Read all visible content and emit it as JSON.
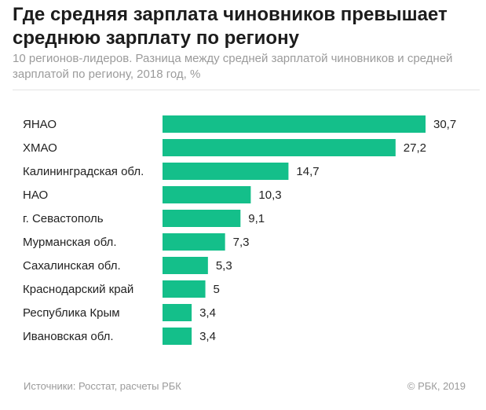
{
  "header": {
    "title": "Где средняя зарплата чиновников превышает среднюю зарплату по региону",
    "subtitle": "10 регионов-лидеров. Разница между средней зарплатой чиновников и средней зарплатой по региону, 2018 год, %"
  },
  "footer": {
    "source": "Источники: Росстат, расчеты РБК",
    "copyright": "© РБК, 2019"
  },
  "chart_data": {
    "type": "bar",
    "orientation": "horizontal",
    "bar_color": "#14bf8a",
    "grid": false,
    "categories": [
      "ЯНАО",
      "ХМАО",
      "Калининградская обл.",
      "НАО",
      "г. Севастополь",
      "Мурманская обл.",
      "Сахалинская обл.",
      "Краснодарский край",
      "Республика Крым",
      "Ивановская обл."
    ],
    "values": [
      30.7,
      27.2,
      14.7,
      10.3,
      9.1,
      7.3,
      5.3,
      5,
      3.4,
      3.4
    ],
    "value_labels": [
      "30,7",
      "27,2",
      "14,7",
      "10,3",
      "9,1",
      "7,3",
      "5,3",
      "5",
      "3,4",
      "3,4"
    ],
    "xlim": [
      0,
      30.7
    ]
  }
}
